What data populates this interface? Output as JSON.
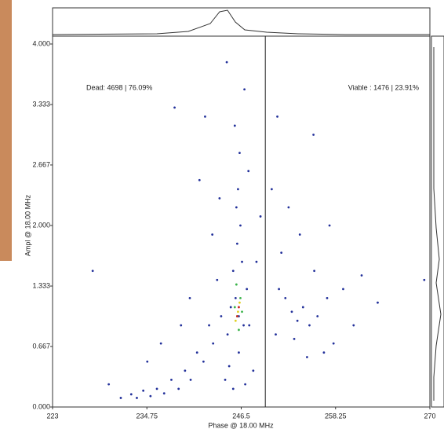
{
  "chart_data": {
    "type": "scatter",
    "xlabel": "Phase @ 18.00 MHz",
    "ylabel": "Ampl @ 18.00 MHz",
    "annotations": [
      "Dead: 4698 | 76.09%",
      "Viable : 1476 | 23.91%"
    ],
    "gate_x": 249.5,
    "xlim": [
      223,
      270
    ],
    "xticks": [
      223,
      234.75,
      246.5,
      258.25,
      270
    ],
    "ylim": [
      0,
      4
    ],
    "yticks": [
      {
        "value": 0,
        "label": "0.000"
      },
      0.667,
      1.333,
      {
        "value": 2,
        "label": "2.000"
      },
      2.667,
      3.333,
      {
        "value": 4,
        "label": "4.000"
      }
    ],
    "series": [
      {
        "color": "#22309a",
        "x": [
          246.2,
          245.8,
          246.8,
          245.5,
          246.0,
          246.4,
          245.9,
          246.1,
          246.6,
          245.2,
          247.2,
          244.8,
          247.5,
          244.0,
          243.5,
          243.0,
          242.5,
          241.8,
          241.0,
          240.2,
          239.5,
          238.7,
          237.8,
          236.9,
          236.0,
          235.2,
          234.3,
          233.5,
          232.8,
          231.5,
          244.5,
          245.5,
          247.0,
          248.0,
          246.3,
          245.7,
          246.9,
          244.7,
          247.4,
          243.8,
          242.9,
          241.3,
          240.1,
          239.0,
          248.4,
          248.9,
          246.2,
          245.0,
          242.0,
          238.2,
          236.5,
          234.8,
          230.0,
          228.0,
          252.8,
          253.5,
          254.2,
          252.0,
          255.0,
          253.1,
          251.2,
          256.0,
          257.2,
          250.8,
          251.5,
          253.8,
          252.4,
          255.6,
          258.0,
          259.2,
          257.5,
          250.3,
          254.7,
          256.8,
          260.5,
          261.5,
          263.5,
          251.0,
          255.5,
          269.3
        ],
        "values": [
          1.0,
          1.2,
          0.9,
          1.5,
          1.8,
          2.0,
          2.2,
          2.4,
          1.6,
          1.1,
          1.3,
          0.8,
          0.9,
          1.0,
          1.4,
          0.7,
          0.9,
          0.5,
          0.6,
          0.3,
          0.4,
          0.2,
          0.3,
          0.15,
          0.2,
          0.12,
          0.18,
          0.1,
          0.14,
          0.1,
          0.3,
          0.2,
          0.25,
          0.4,
          2.8,
          3.1,
          3.5,
          3.8,
          2.6,
          2.3,
          1.9,
          2.5,
          1.2,
          0.9,
          1.6,
          2.1,
          0.6,
          0.45,
          3.2,
          3.3,
          0.7,
          0.5,
          0.25,
          1.5,
          1.05,
          0.95,
          1.1,
          1.2,
          0.9,
          0.75,
          1.3,
          1.0,
          1.2,
          0.8,
          1.7,
          1.9,
          2.2,
          1.5,
          0.7,
          1.3,
          2.0,
          2.4,
          0.55,
          0.6,
          0.9,
          1.45,
          1.15,
          3.2,
          3.0,
          1.4
        ]
      },
      {
        "color": "#3cb44b",
        "x": [
          246.0,
          245.7,
          246.4,
          245.9,
          246.2,
          246.6
        ],
        "values": [
          1.0,
          1.1,
          1.2,
          1.35,
          0.85,
          1.05
        ]
      },
      {
        "color": "#e0d020",
        "x": [
          246.1,
          245.8,
          246.3
        ],
        "values": [
          1.05,
          0.95,
          1.15
        ]
      },
      {
        "color": "#d02020",
        "x": [
          246.0,
          246.2
        ],
        "values": [
          1.0,
          1.1
        ]
      }
    ]
  }
}
